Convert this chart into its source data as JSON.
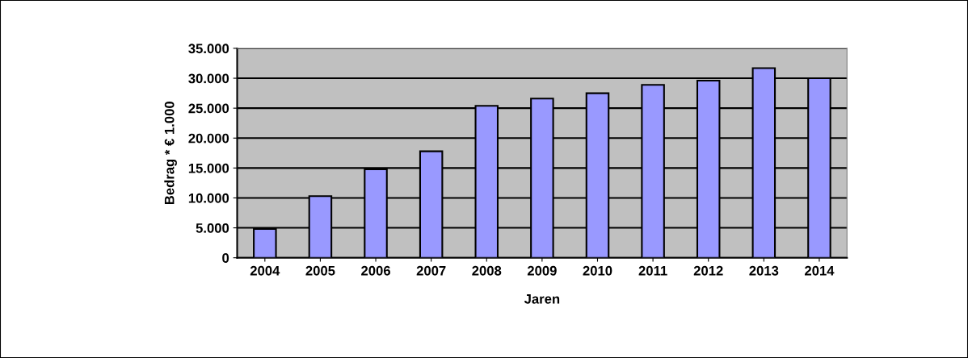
{
  "chart_data": {
    "type": "bar",
    "xlabel": "Jaren",
    "ylabel": "Bedrag * € 1.000",
    "categories": [
      "2004",
      "2005",
      "2006",
      "2007",
      "2008",
      "2009",
      "2010",
      "2011",
      "2012",
      "2013",
      "2014"
    ],
    "values": [
      4800,
      10300,
      14800,
      17800,
      25400,
      26600,
      27500,
      28900,
      29600,
      31700,
      30000
    ],
    "color": "#9999ff",
    "ylim": [
      0,
      35000
    ],
    "yticks": [
      {
        "value": 0,
        "label": "0"
      },
      {
        "value": 5000,
        "label": "5.000"
      },
      {
        "value": 10000,
        "label": "10.000"
      },
      {
        "value": 15000,
        "label": "15.000"
      },
      {
        "value": 20000,
        "label": "20.000"
      },
      {
        "value": 25000,
        "label": "25.000"
      },
      {
        "value": 30000,
        "label": "30.000"
      },
      {
        "value": 35000,
        "label": "35.000"
      }
    ],
    "grid": "y"
  }
}
